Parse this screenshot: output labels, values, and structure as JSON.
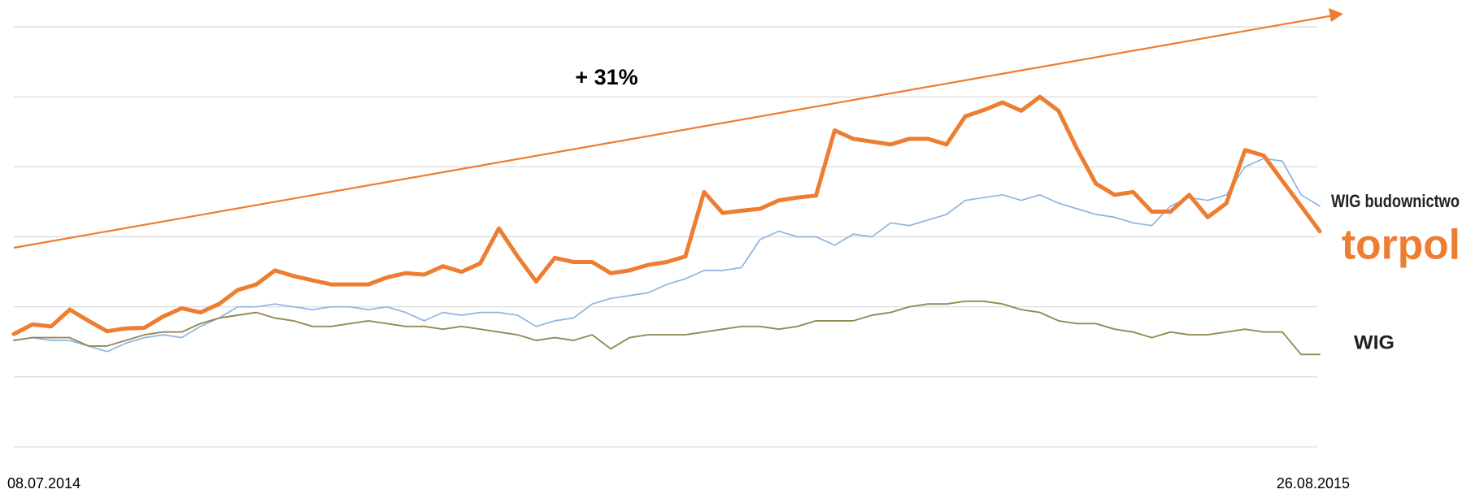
{
  "chart_data": {
    "type": "line",
    "annotation": "+ 31%",
    "categories": [
      "08.07.2014",
      null,
      null,
      null,
      null,
      null,
      null,
      null,
      null,
      null,
      null,
      null,
      null,
      null,
      null,
      null,
      null,
      null,
      null,
      null,
      null,
      null,
      null,
      null,
      null,
      null,
      null,
      null,
      null,
      null,
      null,
      null,
      null,
      null,
      null,
      null,
      null,
      null,
      null,
      null,
      null,
      null,
      null,
      null,
      null,
      null,
      null,
      null,
      null,
      null,
      null,
      null,
      null,
      null,
      null,
      null,
      null,
      null,
      null,
      null,
      null,
      null,
      null,
      null,
      null,
      null,
      null,
      null,
      null,
      null,
      "26.08.2015"
    ],
    "ylim": [
      -50,
      100
    ],
    "yticks": [
      -50,
      -25,
      0,
      25,
      50,
      75,
      100
    ],
    "grid": true,
    "series": [
      {
        "name": "WIG budownictwo",
        "color": "#8eb4e3",
        "values": [
          -12,
          -11,
          -12,
          -12,
          -14,
          -16,
          -13,
          -11,
          -10,
          -11,
          -7,
          -4,
          0,
          0,
          1,
          0,
          -1,
          0,
          0,
          -1,
          0,
          -2,
          -5,
          -2,
          -3,
          -2,
          -2,
          -3,
          -7,
          -5,
          -4,
          1,
          3,
          4,
          5,
          8,
          10,
          13,
          13,
          14,
          24,
          27,
          25,
          25,
          22,
          26,
          25,
          30,
          29,
          31,
          33,
          38,
          39,
          40,
          38,
          40,
          37,
          35,
          33,
          32,
          30,
          29,
          36,
          39,
          38,
          40,
          50,
          53,
          52,
          40,
          36
        ]
      },
      {
        "name": "torpol",
        "color": "#ed7d31",
        "values": [
          -9.7,
          -6.3,
          -7,
          -1,
          -5,
          -8.7,
          -7.7,
          -7.5,
          -3.5,
          -0.5,
          -2,
          1,
          6,
          8,
          13,
          11,
          9.5,
          8,
          8,
          8,
          10.5,
          12,
          11.5,
          14.5,
          12.5,
          15.5,
          28,
          18,
          9,
          17.5,
          16,
          16,
          12,
          13,
          15,
          16,
          18,
          41,
          33.5,
          34.3,
          35,
          38,
          39,
          39.7,
          63,
          60,
          59,
          58,
          60,
          60,
          58,
          68,
          70.3,
          73,
          70,
          75,
          70,
          56.3,
          44,
          40,
          41,
          34,
          34,
          40,
          32,
          37,
          56,
          54,
          45,
          36,
          27
        ]
      },
      {
        "name": "WIG",
        "color": "#948a54",
        "values": [
          -12,
          -11,
          -11,
          -11,
          -14,
          -14,
          -12,
          -10,
          -9,
          -9,
          -6,
          -4,
          -3,
          -2,
          -4,
          -5,
          -7,
          -7,
          -6,
          -5,
          -6,
          -7,
          -7,
          -8,
          -7,
          -8,
          -9,
          -10,
          -12,
          -11,
          -12,
          -10,
          -15,
          -11,
          -10,
          -10,
          -10,
          -9,
          -8,
          -7,
          -7,
          -8,
          -7,
          -5,
          -5,
          -5,
          -3,
          -2,
          0,
          1,
          1,
          2,
          2,
          1,
          -1,
          -2,
          -5,
          -6,
          -6,
          -8,
          -9,
          -11,
          -9,
          -10,
          -10,
          -9,
          -8,
          -9,
          -9,
          -17,
          -17
        ]
      }
    ]
  }
}
